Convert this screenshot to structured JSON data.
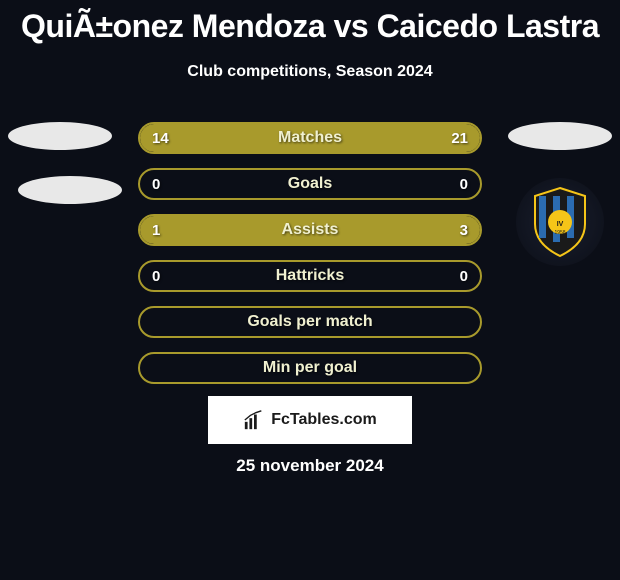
{
  "title": "QuiÃ±onez Mendoza vs Caicedo Lastra",
  "subtitle": "Club competitions, Season 2024",
  "background_color": "#0b0e17",
  "accent_color": "#a89a2c",
  "fill_color": "#a89a2c",
  "text_color": "#ffffff",
  "label_color": "#f0f0d0",
  "stats": [
    {
      "label": "Matches",
      "left_value": "14",
      "right_value": "21",
      "left_pct": 40,
      "right_pct": 60
    },
    {
      "label": "Goals",
      "left_value": "0",
      "right_value": "0",
      "left_pct": 0,
      "right_pct": 0
    },
    {
      "label": "Assists",
      "left_value": "1",
      "right_value": "3",
      "left_pct": 25,
      "right_pct": 75
    },
    {
      "label": "Hattricks",
      "left_value": "0",
      "right_value": "0",
      "left_pct": 0,
      "right_pct": 0
    },
    {
      "label": "Goals per match",
      "left_value": "",
      "right_value": "",
      "left_pct": 0,
      "right_pct": 0
    },
    {
      "label": "Min per goal",
      "left_value": "",
      "right_value": "",
      "left_pct": 0,
      "right_pct": 0
    }
  ],
  "footer_brand": "FcTables.com",
  "date": "25 november 2024",
  "badge_colors": {
    "stripe1": "#1a1a1a",
    "stripe2": "#2b6cb0",
    "center": "#f5c518",
    "border": "#f5c518"
  }
}
